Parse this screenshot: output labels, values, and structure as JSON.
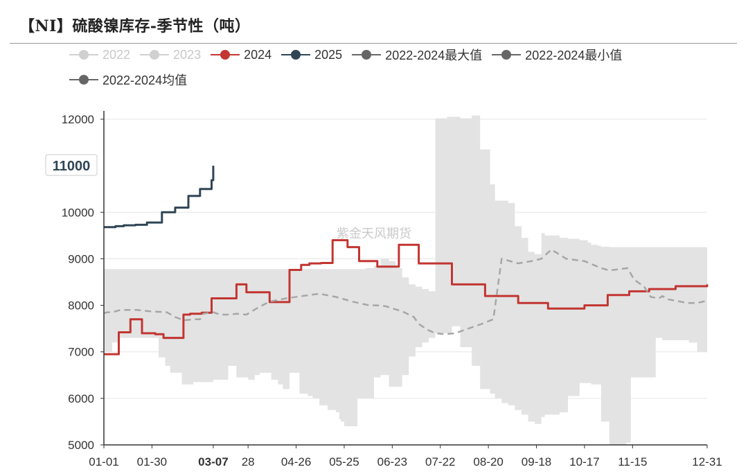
{
  "title": "【NI】硫酸镍库存-季节性（吨）",
  "watermark": "紫金天风期货",
  "chart_data": {
    "type": "line",
    "x_ticks": [
      "01-01",
      "01-30",
      "03-07",
      "28",
      "04-26",
      "05-25",
      "06-23",
      "07-22",
      "08-20",
      "09-18",
      "10-17",
      "11-15",
      "12-31"
    ],
    "y_ticks": [
      5000,
      6000,
      7000,
      8000,
      9000,
      10000,
      12000
    ],
    "ylim": [
      5000,
      12200
    ],
    "xlim": [
      0,
      364
    ],
    "axis_pointer": {
      "x_label": "03-07",
      "y_label": "11000",
      "y_value": 11000,
      "x_value": 66
    },
    "legend": [
      {
        "name": "2022",
        "color": "#c8c8c8",
        "active": false
      },
      {
        "name": "2023",
        "color": "#c8c8c8",
        "active": false
      },
      {
        "name": "2024",
        "color": "#c23531",
        "active": true
      },
      {
        "name": "2025",
        "color": "#2f4554",
        "active": true
      },
      {
        "name": "2022-2024最大值",
        "color": "#666666",
        "active": true
      },
      {
        "name": "2022-2024最小值",
        "color": "#666666",
        "active": true
      },
      {
        "name": "2022-2024均值",
        "color": "#666666",
        "active": true
      }
    ],
    "band": {
      "x": [
        0,
        3,
        5,
        9,
        12,
        16,
        19,
        30,
        33,
        37,
        40,
        47,
        50,
        54,
        57,
        66,
        71,
        75,
        80,
        87,
        91,
        94,
        96,
        101,
        105,
        108,
        112,
        118,
        123,
        126,
        130,
        135,
        140,
        142,
        143,
        145,
        148,
        149,
        153,
        156,
        158,
        163,
        167,
        172,
        176,
        180,
        184,
        188,
        192,
        196,
        200,
        207,
        210,
        215,
        222,
        227,
        233,
        236,
        240,
        244,
        248,
        252,
        256,
        260,
        264,
        266,
        275,
        280,
        287,
        292,
        294,
        298,
        300,
        305,
        307,
        310,
        313,
        315,
        318,
        320,
        325,
        327,
        331,
        333,
        335,
        337,
        338,
        343,
        349,
        353,
        358,
        364
      ],
      "max": [
        8780,
        8780,
        8780,
        8780,
        8780,
        8780,
        8780,
        8780,
        8780,
        8780,
        8780,
        8780,
        8780,
        8780,
        8780,
        8780,
        8780,
        8780,
        8780,
        8780,
        8780,
        8780,
        8780,
        8780,
        8780,
        8780,
        8780,
        8780,
        8780,
        8780,
        8780,
        8780,
        8780,
        8780,
        8780,
        8780,
        8780,
        8780,
        8780,
        8780,
        8800,
        8850,
        9000,
        8950,
        8800,
        8600,
        8450,
        8400,
        8350,
        8300,
        12020,
        12050,
        12050,
        12020,
        12080,
        11350,
        10600,
        10250,
        10250,
        10200,
        9700,
        9450,
        9150,
        9100,
        9550,
        9500,
        9450,
        9430,
        9400,
        9350,
        9300,
        9280,
        9260,
        9250,
        9250,
        9250,
        9250,
        9250,
        9250,
        9250,
        9250,
        9250,
        9250,
        9250,
        9250,
        9250,
        9250,
        9250,
        9250,
        9250,
        9250,
        9250
      ],
      "min": [
        7000,
        7000,
        7200,
        7300,
        7300,
        7300,
        7300,
        7300,
        6880,
        6700,
        6550,
        6300,
        6300,
        6350,
        6350,
        6400,
        6400,
        6700,
        6450,
        6400,
        6500,
        6550,
        6550,
        6400,
        6300,
        6200,
        6550,
        6100,
        6050,
        6000,
        5850,
        5750,
        5700,
        5550,
        5500,
        5400,
        5400,
        5400,
        6000,
        6000,
        6000,
        6450,
        6500,
        6250,
        6250,
        6500,
        6900,
        7100,
        7200,
        7300,
        7400,
        7400,
        7550,
        7100,
        6700,
        6200,
        6100,
        6000,
        5900,
        5850,
        5750,
        5650,
        5500,
        5450,
        5600,
        5650,
        5700,
        6050,
        6330,
        6330,
        6300,
        6300,
        5500,
        5000,
        5000,
        5000,
        5000,
        5050,
        6450,
        6450,
        6450,
        6450,
        6450,
        7300,
        7300,
        7250,
        7250,
        7250,
        7250,
        7200,
        7000,
        6950
      ]
    },
    "series": [
      {
        "name": "2024",
        "color": "#c23531",
        "x": [
          0,
          3,
          9,
          11,
          16,
          18,
          23,
          26,
          31,
          32,
          36,
          38,
          48,
          52,
          59,
          61,
          65,
          72,
          80,
          82,
          86,
          94,
          100,
          106,
          112,
          117,
          119,
          124,
          128,
          131,
          135,
          138,
          143,
          147,
          152,
          154,
          160,
          165,
          172,
          178,
          185,
          190,
          199,
          210,
          220,
          230,
          240,
          250,
          260,
          268,
          278,
          290,
          297,
          304,
          309,
          317,
          324,
          329,
          336,
          345,
          353,
          364
        ],
        "y": [
          6950,
          6950,
          7420,
          7420,
          7700,
          7700,
          7400,
          7400,
          7380,
          7380,
          7300,
          7300,
          7800,
          7820,
          7840,
          7840,
          8150,
          8150,
          8450,
          8450,
          8280,
          8280,
          8070,
          8070,
          8760,
          8760,
          8870,
          8900,
          8900,
          8910,
          8910,
          9400,
          9400,
          9250,
          9250,
          8950,
          8950,
          8830,
          8830,
          9300,
          9300,
          8900,
          8900,
          8450,
          8450,
          8200,
          8200,
          8050,
          8050,
          7930,
          7930,
          8000,
          8000,
          8220,
          8220,
          8300,
          8300,
          8350,
          8350,
          8410,
          8410,
          8450
        ]
      },
      {
        "name": "2025",
        "color": "#2f4554",
        "x": [
          0,
          3,
          7,
          9,
          12,
          16,
          19,
          23,
          26,
          30,
          35,
          38,
          43,
          46,
          51,
          53,
          58,
          60,
          65,
          66
        ],
        "y": [
          9680,
          9680,
          9700,
          9700,
          9720,
          9720,
          9730,
          9730,
          9780,
          9780,
          10000,
          10000,
          10100,
          10100,
          10350,
          10350,
          10500,
          10500,
          10690,
          11000
        ]
      },
      {
        "name": "2022-2024均值",
        "color": "#a6a6a6",
        "x": [
          0,
          2,
          5,
          10,
          20,
          28,
          38,
          43,
          48,
          55,
          58,
          60,
          66,
          70,
          76,
          80,
          86,
          93,
          100,
          110,
          120,
          130,
          140,
          150,
          160,
          165,
          170,
          180,
          187,
          190,
          195,
          200,
          206,
          212,
          220,
          228,
          235,
          240,
          250,
          258,
          264,
          270,
          279,
          290,
          300,
          305,
          312,
          316,
          320,
          326,
          330,
          335,
          337,
          340,
          345,
          352,
          358,
          364
        ],
        "y": [
          7830,
          7850,
          7850,
          7900,
          7900,
          7870,
          7850,
          7750,
          7680,
          7700,
          7700,
          7820,
          7850,
          7800,
          7800,
          7820,
          7800,
          7950,
          8080,
          8150,
          8200,
          8250,
          8180,
          8080,
          8000,
          8000,
          7980,
          7870,
          7750,
          7600,
          7480,
          7400,
          7380,
          7400,
          7500,
          7600,
          7700,
          9000,
          8900,
          8950,
          9000,
          9200,
          9000,
          8950,
          8800,
          8750,
          8780,
          8800,
          8550,
          8400,
          8180,
          8150,
          8200,
          8130,
          8100,
          8050,
          8050,
          8100
        ]
      }
    ]
  }
}
